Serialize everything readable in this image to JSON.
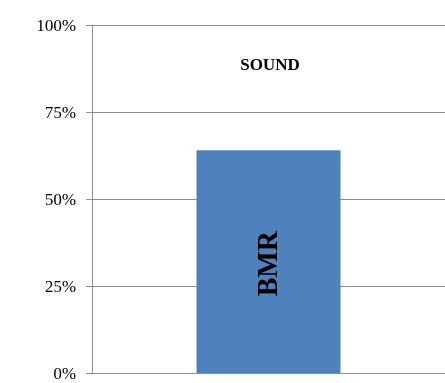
{
  "chart_data": {
    "type": "bar",
    "title": "SOUND",
    "categories": [
      "BMR"
    ],
    "values": [
      64
    ],
    "ylim": [
      0,
      100
    ],
    "yticks": [
      0,
      25,
      50,
      75,
      100
    ],
    "ytick_labels": [
      "0%",
      "25%",
      "50%",
      "75%",
      "100%"
    ],
    "bar_labels": [
      "BMR"
    ],
    "xlabel": "",
    "ylabel": "",
    "grid": true,
    "bar_color": "#4f81bd",
    "gridline_color": "#8c8c8c"
  }
}
